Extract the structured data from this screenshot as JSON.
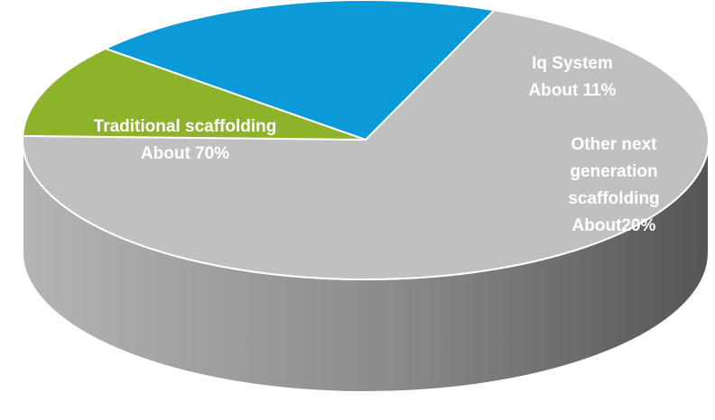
{
  "chart_data": {
    "type": "pie",
    "style": "3d",
    "title": "",
    "slices": [
      {
        "name": "Traditional scaffolding",
        "value": 70,
        "label_lines": [
          "Traditional scaffolding",
          "About 70%"
        ],
        "color": "#c0c0c0",
        "side_color": "#7d7d7d"
      },
      {
        "name": "Iq System",
        "value": 11,
        "label_lines": [
          "Iq System",
          "About 11%"
        ],
        "color": "#8db32a",
        "side_color": "#5a7418"
      },
      {
        "name": "Other next generation scaffolding",
        "value": 20,
        "label_lines": [
          "Other next",
          "generation",
          "scaffolding",
          "About20%"
        ],
        "color": "#0b9ad8",
        "side_color": "#0a3d5e"
      }
    ],
    "label_color": "#ffffff"
  }
}
